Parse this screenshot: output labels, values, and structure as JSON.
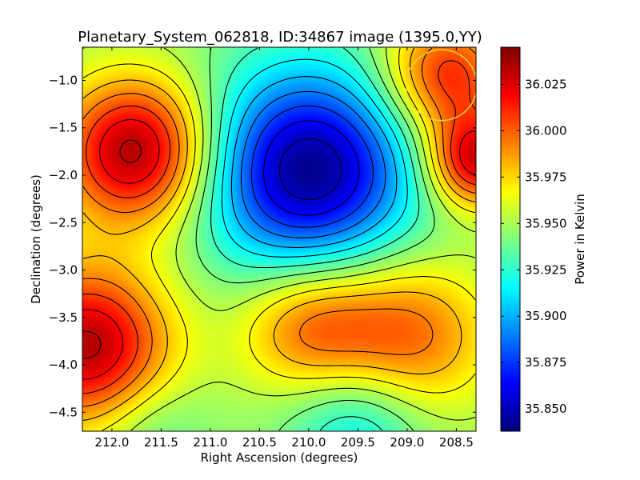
{
  "chart_data": {
    "type": "heatmap",
    "title": "Planetary_System_062818, ID:34867 image (1395.0,YY)",
    "xlabel": "Right Ascension (degrees)",
    "ylabel": "Declination (degrees)",
    "colorbar_label": "Power in Kelvin",
    "xlim": [
      212.3,
      208.3
    ],
    "ylim": [
      -4.7,
      -0.65
    ],
    "x_ticks": [
      212.0,
      211.5,
      211.0,
      210.5,
      210.0,
      209.5,
      209.0,
      208.5
    ],
    "x_tick_labels": [
      "212.0",
      "211.5",
      "211.0",
      "210.5",
      "210.0",
      "209.5",
      "209.0",
      "208.5"
    ],
    "y_ticks": [
      -1.0,
      -1.5,
      -2.0,
      -2.5,
      -3.0,
      -3.5,
      -4.0,
      -4.5
    ],
    "y_tick_labels": [
      "−1.0",
      "−1.5",
      "−2.0",
      "−2.5",
      "−3.0",
      "−3.5",
      "−4.0",
      "−4.5"
    ],
    "colorbar_range": [
      35.838,
      36.045
    ],
    "colorbar_ticks": [
      35.85,
      35.875,
      35.9,
      35.925,
      35.95,
      35.975,
      36.0,
      36.025
    ],
    "colorbar_tick_labels": [
      "35.850",
      "35.875",
      "35.900",
      "35.925",
      "35.950",
      "35.975",
      "36.000",
      "36.025"
    ],
    "colormap": "jet",
    "features": [
      {
        "ra": 211.75,
        "dec": -1.75,
        "value": 36.04,
        "width": 0.55,
        "kind": "maximum"
      },
      {
        "ra": 212.25,
        "dec": -3.8,
        "value": 36.035,
        "width": 0.6,
        "kind": "maximum"
      },
      {
        "ra": 208.3,
        "dec": -1.85,
        "value": 36.03,
        "width": 0.35,
        "kind": "maximum"
      },
      {
        "ra": 208.6,
        "dec": -0.95,
        "value": 36.015,
        "width": 0.45,
        "kind": "maximum"
      },
      {
        "ra": 209.0,
        "dec": -3.7,
        "value": 36.0,
        "width": 0.6,
        "kind": "maximum"
      },
      {
        "ra": 210.0,
        "dec": -3.6,
        "value": 35.995,
        "width": 0.5,
        "kind": "maximum"
      },
      {
        "ra": 210.0,
        "dec": -1.95,
        "value": 35.84,
        "width": 0.75,
        "kind": "minimum"
      },
      {
        "ra": 209.5,
        "dec": -4.6,
        "value": 35.91,
        "width": 0.5,
        "kind": "minimum"
      },
      {
        "ra": 211.6,
        "dec": -4.65,
        "value": 35.93,
        "width": 0.4,
        "kind": "minimum"
      }
    ],
    "annotation_circle": {
      "ra": 208.65,
      "dec": -1.05,
      "radius_deg": 0.36,
      "color": "#e8d23a"
    },
    "contour_color": "#000000",
    "grid": false
  }
}
